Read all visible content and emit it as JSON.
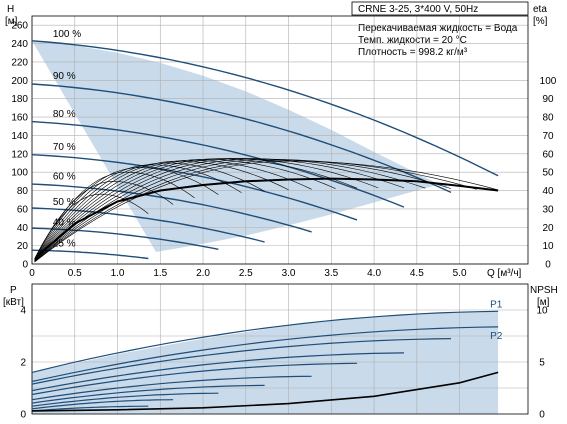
{
  "header": {
    "title": "CRNE 3-25, 3*400 V, 50Hz",
    "info_lines": [
      "Перекачиваемая жидкость = Вода",
      "Темп. жидкости = 20 °C",
      "Плотность = 998.2 кг/м³"
    ]
  },
  "colors": {
    "curve": "#1f4e79",
    "fill": "#c9daea",
    "grid": "#b0b0b0",
    "text": "#000000",
    "legend": "#1f4e79"
  },
  "chart_data": [
    {
      "type": "line",
      "title": "",
      "xlabel": "Q [м³/ч]",
      "ylabel": "H\n[м]",
      "y2label": "eta\n[%]",
      "xlim": [
        0,
        5.8
      ],
      "ylim": [
        0,
        270
      ],
      "y2lim": [
        0,
        135
      ],
      "xticks": [
        0,
        0.5,
        1.0,
        1.5,
        2.0,
        2.5,
        3.0,
        3.5,
        4.0,
        4.5,
        5.0
      ],
      "yticks": [
        0,
        20,
        40,
        60,
        80,
        100,
        120,
        140,
        160,
        180,
        200,
        220,
        240,
        260
      ],
      "y2ticks": [
        0,
        10,
        20,
        30,
        40,
        50,
        60,
        70,
        80,
        90,
        100
      ],
      "grid": true,
      "speed_labels": [
        {
          "text": "100 %",
          "x": 0.15,
          "y": 245
        },
        {
          "text": "90 %",
          "x": 0.15,
          "y": 199
        },
        {
          "text": "80 %",
          "x": 0.15,
          "y": 158
        },
        {
          "text": "70 %",
          "x": 0.15,
          "y": 122
        },
        {
          "text": "60 %",
          "x": 0.15,
          "y": 90
        },
        {
          "text": "50 %",
          "x": 0.15,
          "y": 62
        },
        {
          "text": "40 %",
          "x": 0.15,
          "y": 40
        },
        {
          "text": "25 %",
          "x": 0.15,
          "y": 17
        }
      ],
      "envelope_top": [
        [
          0,
          243
        ],
        [
          0.5,
          238
        ],
        [
          1.0,
          230
        ],
        [
          1.5,
          219
        ],
        [
          2.0,
          205
        ],
        [
          2.5,
          188
        ],
        [
          3.0,
          168
        ],
        [
          3.5,
          146
        ],
        [
          4.0,
          122
        ],
        [
          4.5,
          99
        ],
        [
          4.85,
          82
        ]
      ],
      "envelope_bottom": [
        [
          1.45,
          13
        ],
        [
          2.0,
          22
        ],
        [
          2.5,
          31
        ],
        [
          3.0,
          42
        ],
        [
          3.5,
          54
        ],
        [
          4.0,
          67
        ],
        [
          4.5,
          80
        ],
        [
          4.85,
          89
        ]
      ],
      "head_curves": [
        {
          "name": "100 %",
          "h0": 243,
          "qmax": 5.45,
          "hend": 96
        },
        {
          "name": "90 %",
          "h0": 196,
          "qmax": 4.9,
          "hend": 78
        },
        {
          "name": "80 %",
          "h0": 155,
          "qmax": 4.35,
          "hend": 62
        },
        {
          "name": "70 %",
          "h0": 119,
          "qmax": 3.8,
          "hend": 48
        },
        {
          "name": "60 %",
          "h0": 87,
          "qmax": 3.27,
          "hend": 35
        },
        {
          "name": "50 %",
          "h0": 61,
          "qmax": 2.72,
          "hend": 24
        },
        {
          "name": "40 %",
          "h0": 39,
          "qmax": 2.18,
          "hend": 16
        },
        {
          "name": "25 %",
          "h0": 15,
          "qmax": 1.36,
          "hend": 6
        }
      ],
      "eta_curves": [
        {
          "qmax": 5.45,
          "qpk": 3.0,
          "eta_pk": 56
        },
        {
          "qmax": 5.2,
          "qpk": 2.9,
          "eta_pk": 56.5
        },
        {
          "qmax": 4.9,
          "qpk": 2.75,
          "eta_pk": 57
        },
        {
          "qmax": 4.6,
          "qpk": 2.6,
          "eta_pk": 57.3
        },
        {
          "qmax": 4.35,
          "qpk": 2.45,
          "eta_pk": 57.5
        },
        {
          "qmax": 4.05,
          "qpk": 2.3,
          "eta_pk": 57.5
        },
        {
          "qmax": 3.8,
          "qpk": 2.15,
          "eta_pk": 57.3
        },
        {
          "qmax": 3.55,
          "qpk": 2.0,
          "eta_pk": 57
        },
        {
          "qmax": 3.27,
          "qpk": 1.85,
          "eta_pk": 56.5
        },
        {
          "qmax": 3.0,
          "qpk": 1.7,
          "eta_pk": 56
        },
        {
          "qmax": 2.72,
          "qpk": 1.55,
          "eta_pk": 55
        },
        {
          "qmax": 2.45,
          "qpk": 1.4,
          "eta_pk": 54
        },
        {
          "qmax": 2.18,
          "qpk": 1.25,
          "eta_pk": 52.5
        },
        {
          "qmax": 1.9,
          "qpk": 1.1,
          "eta_pk": 50
        },
        {
          "qmax": 1.65,
          "qpk": 0.95,
          "eta_pk": 45
        },
        {
          "qmax": 1.36,
          "qpk": 0.8,
          "eta_pk": 38
        }
      ],
      "eta_bold": [
        [
          0.05,
          4
        ],
        [
          0.5,
          22
        ],
        [
          1.0,
          34
        ],
        [
          1.5,
          40
        ],
        [
          2.0,
          43
        ],
        [
          2.5,
          45
        ],
        [
          3.0,
          46
        ],
        [
          3.5,
          46.5
        ],
        [
          4.0,
          46
        ],
        [
          4.5,
          45
        ],
        [
          5.0,
          42.5
        ],
        [
          5.45,
          40
        ]
      ]
    },
    {
      "type": "line",
      "title": "",
      "xlabel": "",
      "ylabel": "P\n[кВт]",
      "y2label": "NPSH\n[м]",
      "xlim": [
        0,
        5.8
      ],
      "ylim": [
        0,
        5
      ],
      "y2lim": [
        0,
        12.5
      ],
      "yticks": [
        0,
        2,
        4
      ],
      "y2ticks": [
        0,
        5,
        10
      ],
      "grid": true,
      "legend": [
        "P1",
        "P2"
      ],
      "legend_position": "right",
      "p1_envelope": [
        [
          0,
          1.6
        ],
        [
          1.0,
          2.3
        ],
        [
          2.0,
          2.9
        ],
        [
          3.0,
          3.4
        ],
        [
          4.0,
          3.75
        ],
        [
          5.0,
          3.92
        ],
        [
          5.45,
          3.95
        ]
      ],
      "p2_envelope": [
        [
          0,
          1.25
        ],
        [
          1.0,
          1.85
        ],
        [
          2.0,
          2.35
        ],
        [
          3.0,
          2.8
        ],
        [
          4.0,
          3.1
        ],
        [
          5.0,
          3.3
        ],
        [
          5.45,
          3.35
        ]
      ],
      "power_curves": [
        {
          "p0": 1.6,
          "p1": 3.95,
          "qmax": 5.45
        },
        {
          "p0": 1.25,
          "p1": 3.35,
          "qmax": 5.45
        },
        {
          "p0": 1.15,
          "p1": 2.9,
          "qmax": 4.9
        },
        {
          "p0": 0.9,
          "p1": 2.35,
          "qmax": 4.35
        },
        {
          "p0": 0.75,
          "p1": 1.95,
          "qmax": 3.8
        },
        {
          "p0": 0.55,
          "p1": 1.45,
          "qmax": 3.27
        },
        {
          "p0": 0.42,
          "p1": 1.1,
          "qmax": 2.72
        },
        {
          "p0": 0.3,
          "p1": 0.8,
          "qmax": 2.18
        },
        {
          "p0": 0.2,
          "p1": 0.55,
          "qmax": 1.65
        },
        {
          "p0": 0.12,
          "p1": 0.3,
          "qmax": 1.36
        }
      ],
      "npsh": [
        [
          0,
          0.3
        ],
        [
          1.0,
          0.4
        ],
        [
          2.0,
          0.6
        ],
        [
          3.0,
          1.0
        ],
        [
          4.0,
          1.7
        ],
        [
          5.0,
          3.0
        ],
        [
          5.45,
          4.0
        ]
      ]
    }
  ]
}
